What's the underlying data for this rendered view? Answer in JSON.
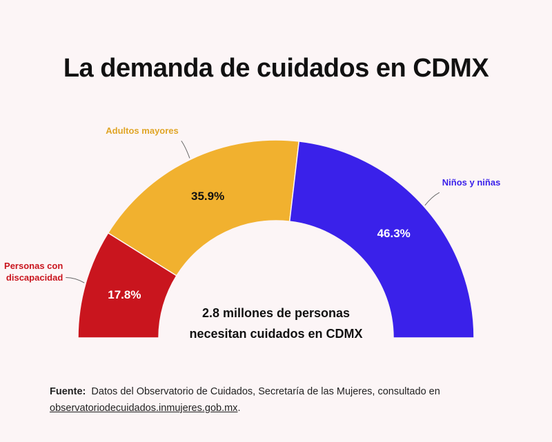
{
  "chart_data": {
    "type": "pie",
    "variant": "semicircle-donut",
    "title": "La demanda de cuidados en CDMX",
    "center_text": [
      "2.8 millones de personas",
      "necesitan cuidados en CDMX"
    ],
    "slices": [
      {
        "label": "Personas con discapacidad",
        "label_lines": [
          "Personas con",
          "discapacidad"
        ],
        "value": 17.8,
        "value_label": "17.8%",
        "color": "#c9151e",
        "label_color": "#c9151e",
        "value_color": "#ffffff"
      },
      {
        "label": "Adultos mayores",
        "label_lines": [
          "Adultos mayores"
        ],
        "value": 35.9,
        "value_label": "35.9%",
        "color": "#f1b12f",
        "label_color": "#e0a526",
        "value_color": "#111111"
      },
      {
        "label": "Niños y niñas",
        "label_lines": [
          "Niños y niñas"
        ],
        "value": 46.3,
        "value_label": "46.3%",
        "color": "#3a21ea",
        "label_color": "#3a21ea",
        "value_color": "#ffffff"
      }
    ]
  },
  "source": {
    "label": "Fuente:",
    "text": "Datos del Observatorio de Cuidados, Secretaría de las Mujeres, consultado en",
    "link": "observatoriodecuidados.inmujeres.gob.mx",
    "end": "."
  }
}
